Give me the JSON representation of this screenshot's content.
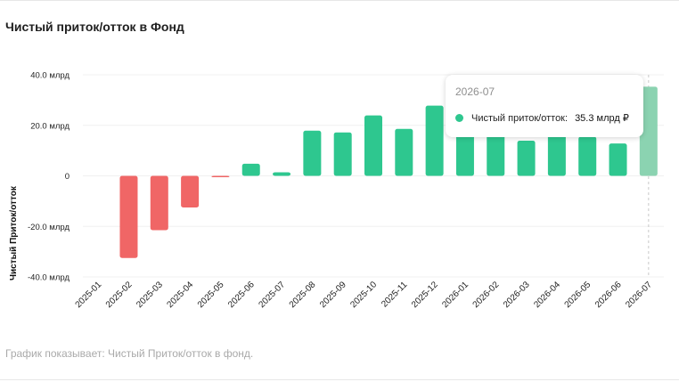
{
  "chart_data": {
    "type": "bar",
    "title": "Чистый приток/отток в Фонд",
    "ylabel": "Чистый Приток/отток",
    "caption": "График показывает: Чистый Приток/отток в фонд.",
    "ylim": [
      -40,
      40
    ],
    "y_ticks": [
      "-40.0 млрд",
      "-20.0 млрд",
      "0",
      "20.0 млрд",
      "40.0 млрд"
    ],
    "y_tick_values": [
      -40,
      -20,
      0,
      20,
      40
    ],
    "categories": [
      "2025-01",
      "2025-02",
      "2025-03",
      "2025-04",
      "2025-05",
      "2025-06",
      "2025-07",
      "2025-08",
      "2025-09",
      "2025-10",
      "2025-11",
      "2025-12",
      "2026-01",
      "2026-02",
      "2026-03",
      "2026-04",
      "2026-05",
      "2026-06",
      "2026-07"
    ],
    "values": [
      0,
      -32.5,
      -21.5,
      -12.5,
      -0.5,
      4.8,
      1.4,
      17.9,
      17.2,
      23.9,
      18.6,
      27.8,
      20.5,
      20,
      13.9,
      19,
      15.5,
      12.8,
      35.3
    ],
    "colors": {
      "positive": "#2ec78f",
      "negative": "#f06666",
      "highlight": "#8bd3b1"
    },
    "highlight_index": 18,
    "tooltip": {
      "title": "2026-07",
      "label": "Чистый приток/отток:",
      "value": "35.3 млрд ₽"
    }
  }
}
